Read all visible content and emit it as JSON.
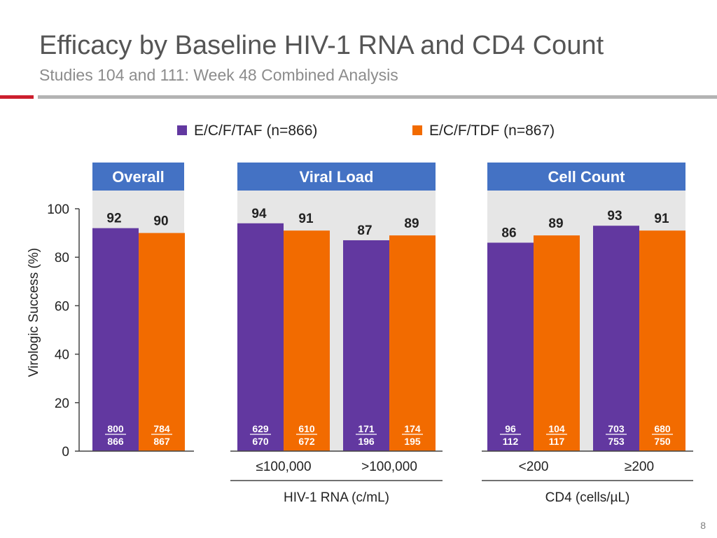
{
  "header": {
    "title": "Efficacy by Baseline HIV-1 RNA and CD4 Count",
    "subtitle": "Studies 104 and 111: Week 48 Combined Analysis"
  },
  "page_number": "8",
  "colors": {
    "taf": "#6238a0",
    "tdf": "#f26b00",
    "panel_header": "#4472c4",
    "panel_bg": "#e6e6e6"
  },
  "chart_data": {
    "type": "bar",
    "ylabel": "Virologic Success (%)",
    "ylim": [
      0,
      100
    ],
    "yticks": [
      "0",
      "20",
      "40",
      "60",
      "80",
      "100"
    ],
    "legend": [
      {
        "name": "E/C/F/TAF (n=866)",
        "key": "taf"
      },
      {
        "name": "E/C/F/TDF (n=867)",
        "key": "tdf"
      }
    ],
    "panels": [
      {
        "title": "Overall",
        "xlabel": "",
        "groups": [
          {
            "label": "",
            "taf": {
              "value": 92,
              "num": "800",
              "den": "866"
            },
            "tdf": {
              "value": 90,
              "num": "784",
              "den": "867"
            }
          }
        ]
      },
      {
        "title": "Viral Load",
        "xlabel": "HIV-1 RNA (c/mL)",
        "groups": [
          {
            "label": "≤100,000",
            "taf": {
              "value": 94,
              "num": "629",
              "den": "670"
            },
            "tdf": {
              "value": 91,
              "num": "610",
              "den": "672"
            }
          },
          {
            "label": ">100,000",
            "taf": {
              "value": 87,
              "num": "171",
              "den": "196"
            },
            "tdf": {
              "value": 89,
              "num": "174",
              "den": "195"
            }
          }
        ]
      },
      {
        "title": "Cell Count",
        "xlabel": "CD4 (cells/µL)",
        "groups": [
          {
            "label": "<200",
            "taf": {
              "value": 86,
              "num": "96",
              "den": "112"
            },
            "tdf": {
              "value": 89,
              "num": "104",
              "den": "117"
            }
          },
          {
            "label": "≥200",
            "taf": {
              "value": 93,
              "num": "703",
              "den": "753"
            },
            "tdf": {
              "value": 91,
              "num": "680",
              "den": "750"
            }
          }
        ]
      }
    ]
  }
}
